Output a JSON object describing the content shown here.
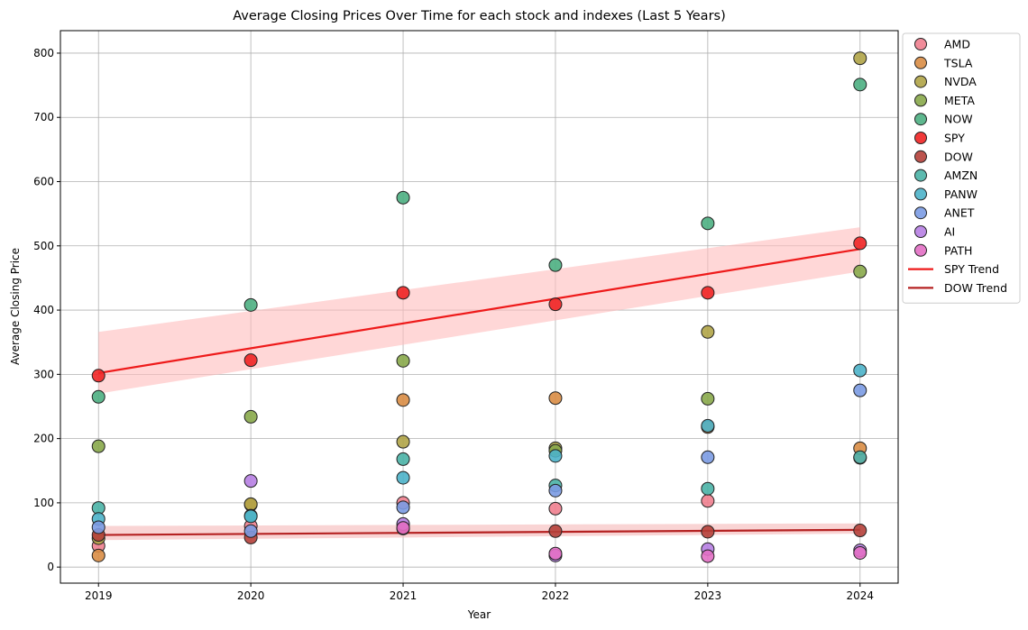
{
  "chart_data": {
    "type": "scatter",
    "title": "Average Closing Prices Over Time for each stock and indexes (Last 5 Years)",
    "xlabel": "Year",
    "ylabel": "Average Closing Price",
    "x": [
      2019,
      2020,
      2021,
      2022,
      2023,
      2024
    ],
    "xlim": [
      2018.75,
      2024.25
    ],
    "ylim": [
      -25,
      835
    ],
    "yticks": [
      0,
      100,
      200,
      300,
      400,
      500,
      600,
      700,
      800
    ],
    "grid": true,
    "legend_position": "outside top-right",
    "series": [
      {
        "name": "AMD",
        "color": "#f07f8f",
        "values": [
          33,
          64,
          100,
          91,
          103,
          170
        ]
      },
      {
        "name": "TSLA",
        "color": "#d98d45",
        "values": [
          18,
          97,
          260,
          263,
          218,
          185
        ]
      },
      {
        "name": "NVDA",
        "color": "#b0a447",
        "values": [
          45,
          98,
          195,
          185,
          366,
          792
        ]
      },
      {
        "name": "META",
        "color": "#88a84a",
        "values": [
          188,
          234,
          321,
          181,
          262,
          460
        ]
      },
      {
        "name": "NOW",
        "color": "#4caf82",
        "values": [
          265,
          408,
          575,
          470,
          535,
          751
        ]
      },
      {
        "name": "SPY",
        "color": "#ef2424",
        "values": [
          298,
          322,
          427,
          409,
          427,
          504
        ]
      },
      {
        "name": "DOW",
        "color": "#b5403a",
        "values": [
          50,
          46,
          60,
          56,
          55,
          57
        ]
      },
      {
        "name": "AMZN",
        "color": "#4ab3a6",
        "values": [
          92,
          80,
          168,
          127,
          122,
          171
        ]
      },
      {
        "name": "PANW",
        "color": "#4cb3c9",
        "values": [
          75,
          79,
          139,
          173,
          220,
          306
        ]
      },
      {
        "name": "ANET",
        "color": "#7b9be3",
        "values": [
          62,
          56,
          93,
          119,
          171,
          275
        ]
      },
      {
        "name": "AI",
        "color": "#b77fe3",
        "values": [
          null,
          134,
          67,
          18,
          28,
          26
        ]
      },
      {
        "name": "PATH",
        "color": "#e26fc4",
        "values": [
          null,
          null,
          61,
          21,
          17,
          22
        ]
      }
    ],
    "trends": [
      {
        "name": "SPY Trend",
        "color": "#ee1a1a",
        "band_color": "#ffbcbc",
        "x": [
          2019,
          2024
        ],
        "values": [
          302,
          495
        ],
        "band_lower": [
          270,
          460
        ],
        "band_upper": [
          366,
          529
        ]
      },
      {
        "name": "DOW Trend",
        "color": "#b52222",
        "band_color": "#f5b8b8",
        "x": [
          2019,
          2024
        ],
        "values": [
          50,
          58
        ],
        "band_lower": [
          42,
          52
        ],
        "band_upper": [
          64,
          68
        ]
      }
    ]
  }
}
